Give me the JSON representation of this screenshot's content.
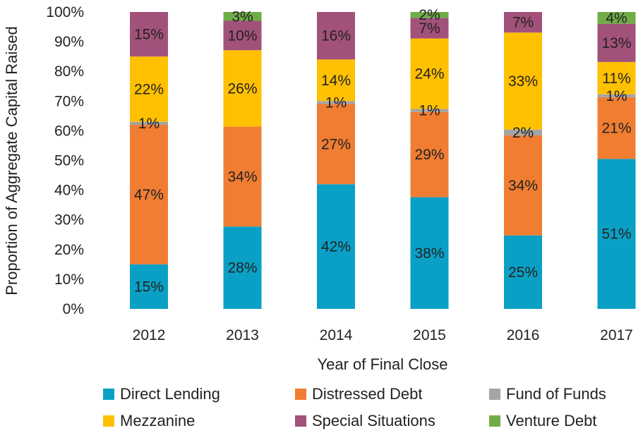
{
  "chart_data": {
    "type": "bar",
    "stacked": true,
    "title": "",
    "xlabel": "Year of Final Close",
    "ylabel": "Proportion of Aggregate Capital Raised",
    "ylim": [
      0,
      100
    ],
    "yticks": [
      "0%",
      "10%",
      "20%",
      "30%",
      "40%",
      "50%",
      "60%",
      "70%",
      "80%",
      "90%",
      "100%"
    ],
    "categories": [
      "2012",
      "2013",
      "2014",
      "2015",
      "2016",
      "2017"
    ],
    "legend_position": "bottom",
    "grid": false,
    "series": [
      {
        "name": "Direct Lending",
        "color": "#0aa0c6",
        "values": [
          15,
          28,
          42,
          38,
          25,
          51
        ],
        "labels": [
          "15%",
          "28%",
          "42%",
          "38%",
          "25%",
          "51%"
        ]
      },
      {
        "name": "Distressed Debt",
        "color": "#f07d32",
        "values": [
          47,
          34,
          27,
          29,
          34,
          21
        ],
        "labels": [
          "47%",
          "34%",
          "27%",
          "29%",
          "34%",
          "21%"
        ]
      },
      {
        "name": "Fund of Funds",
        "color": "#a5a5a5",
        "values": [
          1,
          0,
          1,
          1,
          2,
          1
        ],
        "labels": [
          "1%",
          "",
          "1%",
          "1%",
          "2%",
          "1%"
        ]
      },
      {
        "name": "Mezzanine",
        "color": "#ffc000",
        "values": [
          22,
          26,
          14,
          24,
          33,
          11
        ],
        "labels": [
          "22%",
          "26%",
          "14%",
          "24%",
          "33%",
          "11%"
        ]
      },
      {
        "name": "Special Situations",
        "color": "#a2527a",
        "values": [
          15,
          10,
          16,
          7,
          7,
          13
        ],
        "labels": [
          "15%",
          "10%",
          "16%",
          "7%",
          "7%",
          "13%"
        ]
      },
      {
        "name": "Venture Debt",
        "color": "#70ad47",
        "values": [
          0,
          3,
          0,
          2,
          0,
          4
        ],
        "labels": [
          "",
          "3%",
          "",
          "2%",
          "",
          "4%"
        ]
      }
    ]
  }
}
